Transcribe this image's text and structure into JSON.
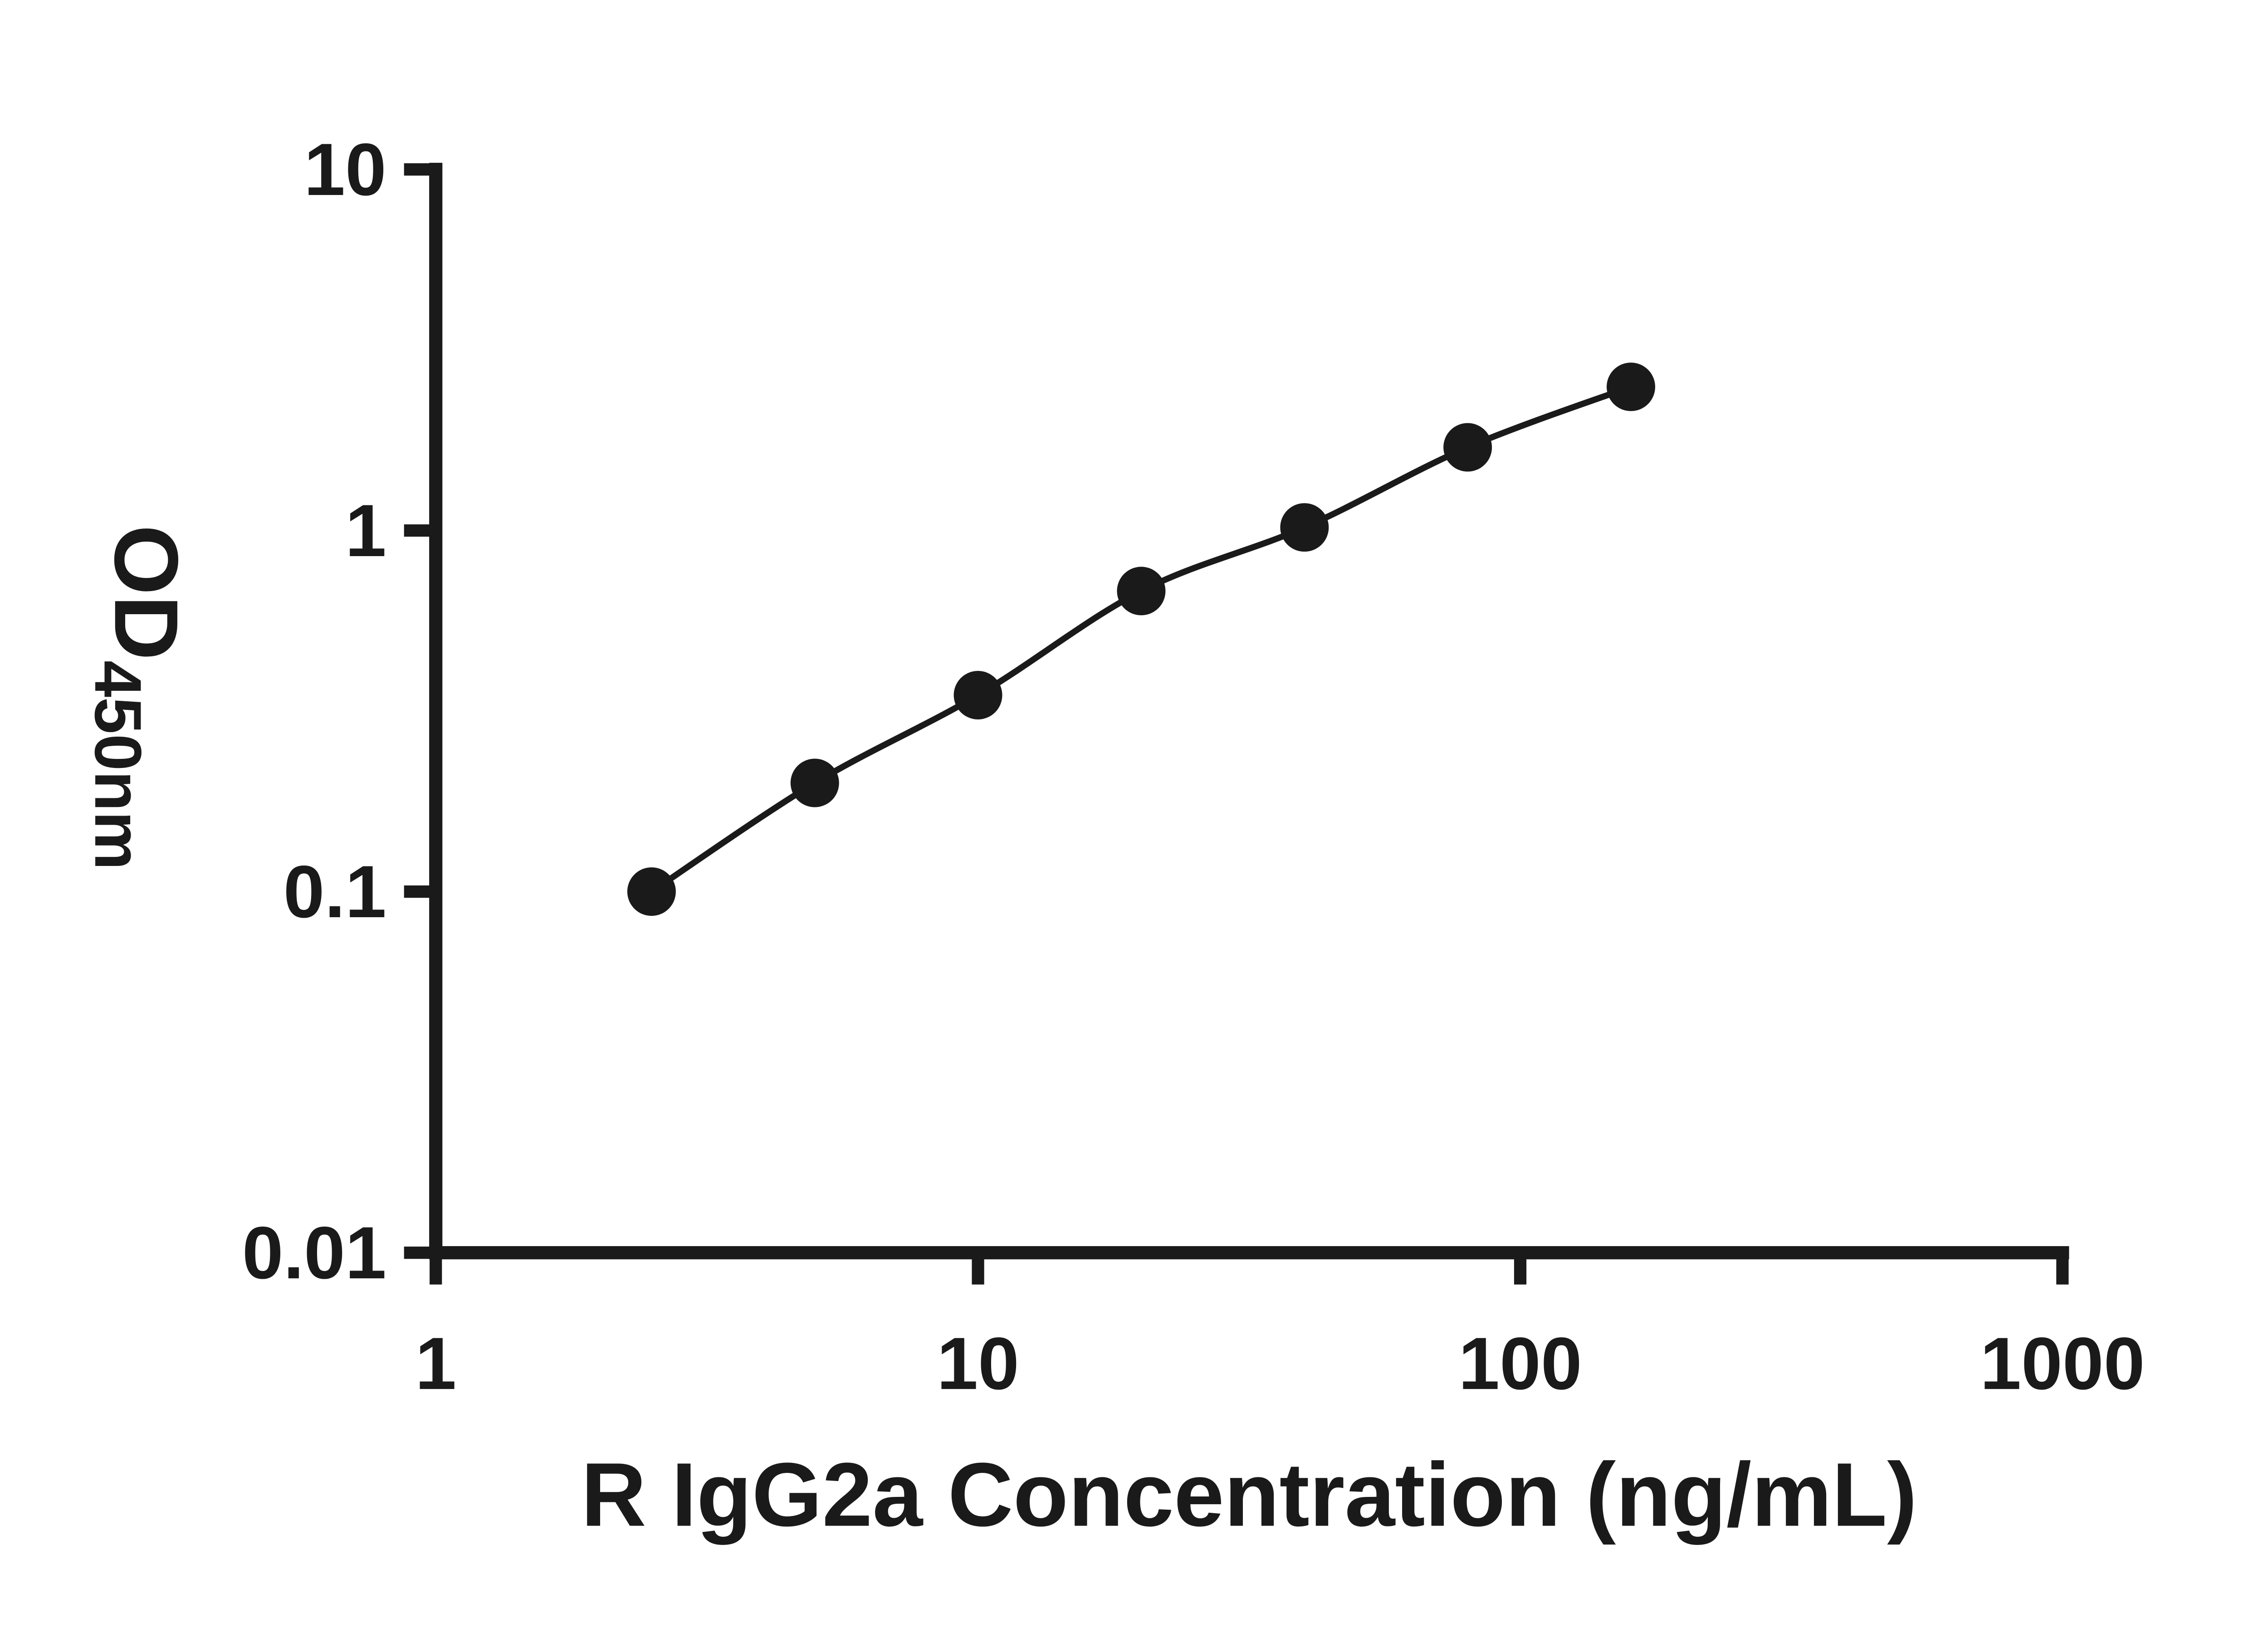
{
  "chart_data": {
    "type": "scatter",
    "title": "",
    "xlabel": "R IgG2a Concentration (ng/mL)",
    "ylabel": "OD450nm",
    "ylabel_base": "OD",
    "ylabel_subscript": "450nm",
    "x_scale": "log10",
    "y_scale": "log10",
    "xlim": [
      1,
      1000
    ],
    "ylim": [
      0.01,
      10
    ],
    "x_tick_values": [
      1,
      10,
      100,
      1000
    ],
    "x_tick_labels": [
      "1",
      "10",
      "100",
      "1000"
    ],
    "y_tick_values": [
      0.01,
      0.1,
      1,
      10
    ],
    "y_tick_labels": [
      "0.01",
      "0.1",
      "1",
      "10"
    ],
    "grid": false,
    "legend": "none",
    "marker": "filled-circle",
    "curve": "smooth-line-through-points",
    "x": [
      2.5,
      5,
      10,
      20,
      40,
      80,
      160
    ],
    "y": [
      0.1,
      0.2,
      0.35,
      0.68,
      1.02,
      1.7,
      2.5
    ]
  },
  "style": {
    "background": "#ffffff",
    "axis_color": "#1a1a1a",
    "tick_color": "#1a1a1a",
    "text_color": "#1a1a1a",
    "line_color": "#1a1a1a",
    "marker_color": "#1a1a1a"
  }
}
